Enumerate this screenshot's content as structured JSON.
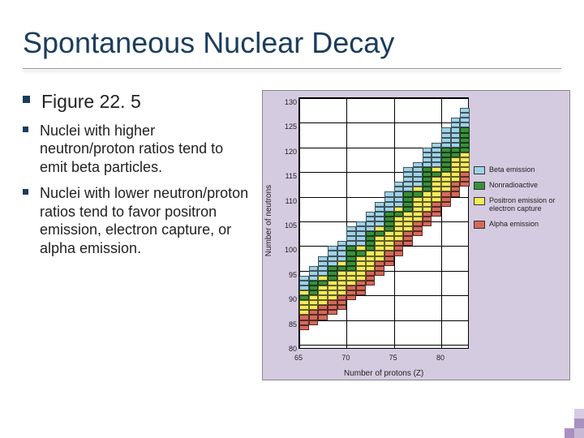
{
  "title": "Spontaneous Nuclear Decay",
  "bullets": [
    {
      "text": "Figure 22. 5",
      "size": "lg"
    },
    {
      "text": "Nuclei with higher neutron/proton ratios tend to emit beta particles.",
      "size": "sm"
    },
    {
      "text": "Nuclei with lower neutron/proton ratios tend to favor positron emission, electron capture, or alpha emission.",
      "size": "sm"
    }
  ],
  "chart": {
    "type": "heatmap-scatter",
    "background_color": "#d5cbe0",
    "plot_bg": "#ffffff",
    "y_label": "Number of neutrons",
    "x_label": "Number of protons (Z)",
    "x_ticks": [
      65,
      70,
      75,
      80
    ],
    "y_ticks": [
      80,
      85,
      90,
      95,
      100,
      105,
      110,
      115,
      120,
      125,
      130
    ],
    "xlim": [
      65,
      82
    ],
    "ylim": [
      80,
      130
    ],
    "legend": [
      {
        "label": "Beta emission",
        "color": "#9fd2e6"
      },
      {
        "label": "Nonradioactive",
        "color": "#3a8f3a"
      },
      {
        "label": "Positron emission or electron capture",
        "color": "#f4ea5c"
      },
      {
        "label": "Alpha emission",
        "color": "#d46a5a"
      }
    ],
    "colors": {
      "beta": "#9fd2e6",
      "stable": "#3a8f3a",
      "positron": "#f4ea5c",
      "alpha": "#d46a5a"
    },
    "cells_note": "Encoded as [z, n, colorKey] — approximated region of nuclide stability chart",
    "cells": [
      [
        65,
        84,
        "alpha"
      ],
      [
        65,
        85,
        "alpha"
      ],
      [
        65,
        86,
        "alpha"
      ],
      [
        65,
        87,
        "positron"
      ],
      [
        65,
        88,
        "positron"
      ],
      [
        65,
        89,
        "positron"
      ],
      [
        65,
        90,
        "stable"
      ],
      [
        65,
        91,
        "positron"
      ],
      [
        65,
        92,
        "beta"
      ],
      [
        65,
        93,
        "beta"
      ],
      [
        65,
        94,
        "beta"
      ],
      [
        66,
        85,
        "alpha"
      ],
      [
        66,
        86,
        "alpha"
      ],
      [
        66,
        87,
        "alpha"
      ],
      [
        66,
        88,
        "positron"
      ],
      [
        66,
        89,
        "positron"
      ],
      [
        66,
        90,
        "positron"
      ],
      [
        66,
        91,
        "stable"
      ],
      [
        66,
        92,
        "stable"
      ],
      [
        66,
        93,
        "stable"
      ],
      [
        66,
        94,
        "beta"
      ],
      [
        66,
        95,
        "beta"
      ],
      [
        66,
        96,
        "beta"
      ],
      [
        67,
        86,
        "alpha"
      ],
      [
        67,
        87,
        "alpha"
      ],
      [
        67,
        88,
        "alpha"
      ],
      [
        67,
        89,
        "positron"
      ],
      [
        67,
        90,
        "positron"
      ],
      [
        67,
        91,
        "positron"
      ],
      [
        67,
        92,
        "positron"
      ],
      [
        67,
        93,
        "stable"
      ],
      [
        67,
        94,
        "positron"
      ],
      [
        67,
        95,
        "beta"
      ],
      [
        67,
        96,
        "beta"
      ],
      [
        67,
        97,
        "beta"
      ],
      [
        67,
        98,
        "beta"
      ],
      [
        68,
        87,
        "alpha"
      ],
      [
        68,
        88,
        "alpha"
      ],
      [
        68,
        89,
        "alpha"
      ],
      [
        68,
        90,
        "positron"
      ],
      [
        68,
        91,
        "positron"
      ],
      [
        68,
        92,
        "positron"
      ],
      [
        68,
        93,
        "positron"
      ],
      [
        68,
        94,
        "stable"
      ],
      [
        68,
        95,
        "stable"
      ],
      [
        68,
        96,
        "stable"
      ],
      [
        68,
        97,
        "beta"
      ],
      [
        68,
        98,
        "beta"
      ],
      [
        68,
        99,
        "beta"
      ],
      [
        68,
        100,
        "beta"
      ],
      [
        69,
        88,
        "alpha"
      ],
      [
        69,
        89,
        "alpha"
      ],
      [
        69,
        90,
        "alpha"
      ],
      [
        69,
        91,
        "positron"
      ],
      [
        69,
        92,
        "positron"
      ],
      [
        69,
        93,
        "positron"
      ],
      [
        69,
        94,
        "positron"
      ],
      [
        69,
        95,
        "positron"
      ],
      [
        69,
        96,
        "stable"
      ],
      [
        69,
        97,
        "positron"
      ],
      [
        69,
        98,
        "beta"
      ],
      [
        69,
        99,
        "beta"
      ],
      [
        69,
        100,
        "beta"
      ],
      [
        69,
        101,
        "beta"
      ],
      [
        70,
        90,
        "alpha"
      ],
      [
        70,
        91,
        "alpha"
      ],
      [
        70,
        92,
        "alpha"
      ],
      [
        70,
        93,
        "positron"
      ],
      [
        70,
        94,
        "positron"
      ],
      [
        70,
        95,
        "positron"
      ],
      [
        70,
        96,
        "stable"
      ],
      [
        70,
        97,
        "stable"
      ],
      [
        70,
        98,
        "stable"
      ],
      [
        70,
        99,
        "stable"
      ],
      [
        70,
        100,
        "stable"
      ],
      [
        70,
        101,
        "beta"
      ],
      [
        70,
        102,
        "beta"
      ],
      [
        70,
        103,
        "beta"
      ],
      [
        70,
        104,
        "beta"
      ],
      [
        71,
        91,
        "alpha"
      ],
      [
        71,
        92,
        "alpha"
      ],
      [
        71,
        93,
        "alpha"
      ],
      [
        71,
        94,
        "positron"
      ],
      [
        71,
        95,
        "positron"
      ],
      [
        71,
        96,
        "positron"
      ],
      [
        71,
        97,
        "positron"
      ],
      [
        71,
        98,
        "positron"
      ],
      [
        71,
        99,
        "stable"
      ],
      [
        71,
        100,
        "positron"
      ],
      [
        71,
        101,
        "beta"
      ],
      [
        71,
        102,
        "beta"
      ],
      [
        71,
        103,
        "beta"
      ],
      [
        71,
        104,
        "beta"
      ],
      [
        71,
        105,
        "beta"
      ],
      [
        72,
        93,
        "alpha"
      ],
      [
        72,
        94,
        "alpha"
      ],
      [
        72,
        95,
        "alpha"
      ],
      [
        72,
        96,
        "positron"
      ],
      [
        72,
        97,
        "positron"
      ],
      [
        72,
        98,
        "positron"
      ],
      [
        72,
        99,
        "positron"
      ],
      [
        72,
        100,
        "stable"
      ],
      [
        72,
        101,
        "stable"
      ],
      [
        72,
        102,
        "stable"
      ],
      [
        72,
        103,
        "stable"
      ],
      [
        72,
        104,
        "beta"
      ],
      [
        72,
        105,
        "beta"
      ],
      [
        72,
        106,
        "beta"
      ],
      [
        72,
        107,
        "beta"
      ],
      [
        73,
        95,
        "alpha"
      ],
      [
        73,
        96,
        "alpha"
      ],
      [
        73,
        97,
        "alpha"
      ],
      [
        73,
        98,
        "positron"
      ],
      [
        73,
        99,
        "positron"
      ],
      [
        73,
        100,
        "positron"
      ],
      [
        73,
        101,
        "positron"
      ],
      [
        73,
        102,
        "positron"
      ],
      [
        73,
        103,
        "stable"
      ],
      [
        73,
        104,
        "positron"
      ],
      [
        73,
        105,
        "beta"
      ],
      [
        73,
        106,
        "beta"
      ],
      [
        73,
        107,
        "beta"
      ],
      [
        73,
        108,
        "beta"
      ],
      [
        73,
        109,
        "beta"
      ],
      [
        74,
        97,
        "alpha"
      ],
      [
        74,
        98,
        "alpha"
      ],
      [
        74,
        99,
        "alpha"
      ],
      [
        74,
        100,
        "positron"
      ],
      [
        74,
        101,
        "positron"
      ],
      [
        74,
        102,
        "positron"
      ],
      [
        74,
        103,
        "positron"
      ],
      [
        74,
        104,
        "stable"
      ],
      [
        74,
        105,
        "stable"
      ],
      [
        74,
        106,
        "stable"
      ],
      [
        74,
        107,
        "stable"
      ],
      [
        74,
        108,
        "beta"
      ],
      [
        74,
        109,
        "beta"
      ],
      [
        74,
        110,
        "beta"
      ],
      [
        74,
        111,
        "beta"
      ],
      [
        75,
        99,
        "alpha"
      ],
      [
        75,
        100,
        "alpha"
      ],
      [
        75,
        101,
        "alpha"
      ],
      [
        75,
        102,
        "positron"
      ],
      [
        75,
        103,
        "positron"
      ],
      [
        75,
        104,
        "positron"
      ],
      [
        75,
        105,
        "positron"
      ],
      [
        75,
        106,
        "positron"
      ],
      [
        75,
        107,
        "stable"
      ],
      [
        75,
        108,
        "positron"
      ],
      [
        75,
        109,
        "beta"
      ],
      [
        75,
        110,
        "beta"
      ],
      [
        75,
        111,
        "beta"
      ],
      [
        75,
        112,
        "beta"
      ],
      [
        75,
        113,
        "beta"
      ],
      [
        76,
        101,
        "alpha"
      ],
      [
        76,
        102,
        "alpha"
      ],
      [
        76,
        103,
        "alpha"
      ],
      [
        76,
        104,
        "positron"
      ],
      [
        76,
        105,
        "positron"
      ],
      [
        76,
        106,
        "positron"
      ],
      [
        76,
        107,
        "positron"
      ],
      [
        76,
        108,
        "stable"
      ],
      [
        76,
        109,
        "stable"
      ],
      [
        76,
        110,
        "stable"
      ],
      [
        76,
        111,
        "stable"
      ],
      [
        76,
        112,
        "beta"
      ],
      [
        76,
        113,
        "beta"
      ],
      [
        76,
        114,
        "beta"
      ],
      [
        76,
        115,
        "beta"
      ],
      [
        76,
        116,
        "beta"
      ],
      [
        77,
        103,
        "alpha"
      ],
      [
        77,
        104,
        "alpha"
      ],
      [
        77,
        105,
        "alpha"
      ],
      [
        77,
        106,
        "positron"
      ],
      [
        77,
        107,
        "positron"
      ],
      [
        77,
        108,
        "positron"
      ],
      [
        77,
        109,
        "positron"
      ],
      [
        77,
        110,
        "positron"
      ],
      [
        77,
        111,
        "stable"
      ],
      [
        77,
        112,
        "positron"
      ],
      [
        77,
        113,
        "beta"
      ],
      [
        77,
        114,
        "beta"
      ],
      [
        77,
        115,
        "beta"
      ],
      [
        77,
        116,
        "beta"
      ],
      [
        77,
        117,
        "beta"
      ],
      [
        78,
        105,
        "alpha"
      ],
      [
        78,
        106,
        "alpha"
      ],
      [
        78,
        107,
        "alpha"
      ],
      [
        78,
        108,
        "positron"
      ],
      [
        78,
        109,
        "positron"
      ],
      [
        78,
        110,
        "positron"
      ],
      [
        78,
        111,
        "positron"
      ],
      [
        78,
        112,
        "stable"
      ],
      [
        78,
        113,
        "stable"
      ],
      [
        78,
        114,
        "stable"
      ],
      [
        78,
        115,
        "stable"
      ],
      [
        78,
        116,
        "stable"
      ],
      [
        78,
        117,
        "beta"
      ],
      [
        78,
        118,
        "beta"
      ],
      [
        78,
        119,
        "beta"
      ],
      [
        78,
        120,
        "beta"
      ],
      [
        79,
        107,
        "alpha"
      ],
      [
        79,
        108,
        "alpha"
      ],
      [
        79,
        109,
        "alpha"
      ],
      [
        79,
        110,
        "positron"
      ],
      [
        79,
        111,
        "positron"
      ],
      [
        79,
        112,
        "positron"
      ],
      [
        79,
        113,
        "positron"
      ],
      [
        79,
        114,
        "positron"
      ],
      [
        79,
        115,
        "stable"
      ],
      [
        79,
        116,
        "positron"
      ],
      [
        79,
        117,
        "beta"
      ],
      [
        79,
        118,
        "beta"
      ],
      [
        79,
        119,
        "beta"
      ],
      [
        79,
        120,
        "beta"
      ],
      [
        79,
        121,
        "beta"
      ],
      [
        80,
        109,
        "alpha"
      ],
      [
        80,
        110,
        "alpha"
      ],
      [
        80,
        111,
        "alpha"
      ],
      [
        80,
        112,
        "positron"
      ],
      [
        80,
        113,
        "positron"
      ],
      [
        80,
        114,
        "positron"
      ],
      [
        80,
        115,
        "positron"
      ],
      [
        80,
        116,
        "stable"
      ],
      [
        80,
        117,
        "stable"
      ],
      [
        80,
        118,
        "stable"
      ],
      [
        80,
        119,
        "stable"
      ],
      [
        80,
        120,
        "stable"
      ],
      [
        80,
        121,
        "beta"
      ],
      [
        80,
        122,
        "beta"
      ],
      [
        80,
        123,
        "beta"
      ],
      [
        80,
        124,
        "beta"
      ],
      [
        81,
        111,
        "alpha"
      ],
      [
        81,
        112,
        "alpha"
      ],
      [
        81,
        113,
        "alpha"
      ],
      [
        81,
        114,
        "positron"
      ],
      [
        81,
        115,
        "positron"
      ],
      [
        81,
        116,
        "positron"
      ],
      [
        81,
        117,
        "positron"
      ],
      [
        81,
        118,
        "positron"
      ],
      [
        81,
        119,
        "stable"
      ],
      [
        81,
        120,
        "stable"
      ],
      [
        81,
        121,
        "beta"
      ],
      [
        81,
        122,
        "beta"
      ],
      [
        81,
        123,
        "beta"
      ],
      [
        81,
        124,
        "beta"
      ],
      [
        81,
        125,
        "beta"
      ],
      [
        81,
        126,
        "beta"
      ],
      [
        82,
        113,
        "alpha"
      ],
      [
        82,
        114,
        "alpha"
      ],
      [
        82,
        115,
        "alpha"
      ],
      [
        82,
        116,
        "positron"
      ],
      [
        82,
        117,
        "positron"
      ],
      [
        82,
        118,
        "positron"
      ],
      [
        82,
        119,
        "positron"
      ],
      [
        82,
        120,
        "stable"
      ],
      [
        82,
        121,
        "stable"
      ],
      [
        82,
        122,
        "stable"
      ],
      [
        82,
        123,
        "stable"
      ],
      [
        82,
        124,
        "stable"
      ],
      [
        82,
        125,
        "beta"
      ],
      [
        82,
        126,
        "beta"
      ],
      [
        82,
        127,
        "beta"
      ],
      [
        82,
        128,
        "beta"
      ]
    ]
  },
  "corner_colors": [
    "#c8b8d6",
    "#a890c0",
    "#8868a8"
  ]
}
